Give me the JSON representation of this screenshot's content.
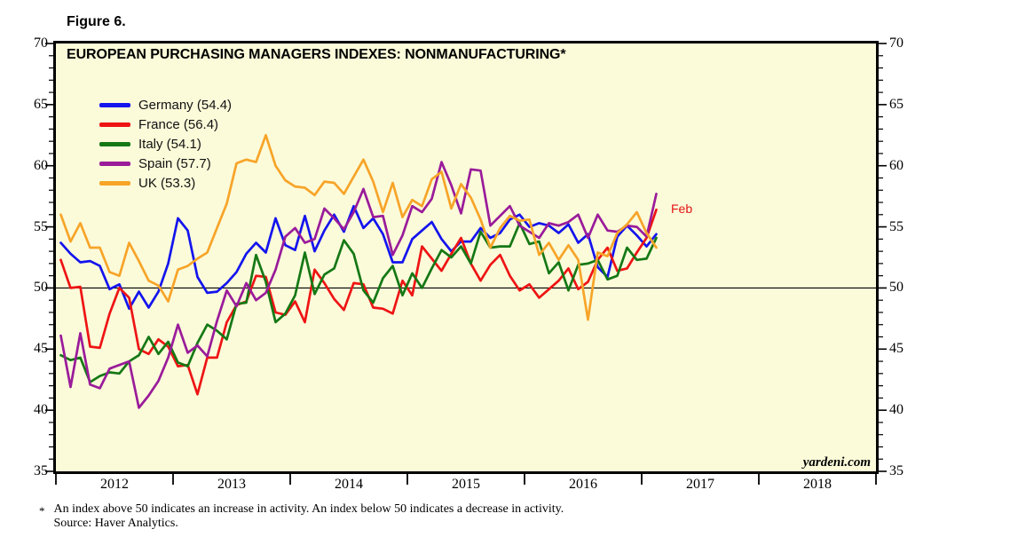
{
  "figure": {
    "label": "Figure 6."
  },
  "watermark": "yardeni.com",
  "annotations": {
    "feb_label": "Feb",
    "feb_color": "#e41414"
  },
  "footnote": {
    "marker": "*",
    "line1": "An index above 50 indicates an increase in activity. An index below 50 indicates a decrease in activity.",
    "line2": "Source: Haver Analytics."
  },
  "chart_data": {
    "type": "line",
    "title": "EUROPEAN PURCHASING MANAGERS INDEXES: NONMANUFACTURING*",
    "plot_background": "#fbfbda",
    "grid": false,
    "legend_position": "top-left",
    "reference_line": 50,
    "y_axis": {
      "min": 35,
      "max": 70,
      "major_tick": 5,
      "minor_tick": 1,
      "tick_labels": [
        "70",
        "65",
        "60",
        "55",
        "50",
        "45",
        "40",
        "35"
      ],
      "tick_values": [
        70,
        65,
        60,
        55,
        50,
        45,
        40,
        35
      ],
      "labels_on_both_sides": true
    },
    "x_axis": {
      "unit": "month",
      "data_start": "2012-01",
      "data_end": "2017-02",
      "axis_end": "2019-01",
      "months_span": 84,
      "year_labels": [
        "2012",
        "2013",
        "2014",
        "2015",
        "2016",
        "2017",
        "2018"
      ]
    },
    "series": [
      {
        "name": "Germany",
        "legend_label": "Germany (54.4)",
        "latest": 54.4,
        "color": "#1414ee",
        "values": [
          53.7,
          52.8,
          52.1,
          52.2,
          51.8,
          49.9,
          50.3,
          48.3,
          49.7,
          48.4,
          49.7,
          52.0,
          55.7,
          54.7,
          50.9,
          49.6,
          49.7,
          50.4,
          51.3,
          52.8,
          53.7,
          52.9,
          55.7,
          53.5,
          53.1,
          55.9,
          53.0,
          54.7,
          56.0,
          54.6,
          56.7,
          54.9,
          55.7,
          54.4,
          52.1,
          52.1,
          54.0,
          54.7,
          55.4,
          54.0,
          53.0,
          53.8,
          53.8,
          54.9,
          54.1,
          54.5,
          55.6,
          56.0,
          55.0,
          55.3,
          55.1,
          54.5,
          55.2,
          53.7,
          54.4,
          51.7,
          50.9,
          54.2,
          55.1,
          54.3,
          53.4,
          54.4
        ]
      },
      {
        "name": "France",
        "legend_label": "France (56.4)",
        "latest": 56.4,
        "color": "#ee1414",
        "values": [
          52.3,
          50.0,
          50.1,
          45.2,
          45.1,
          47.9,
          50.0,
          49.2,
          45.0,
          44.6,
          45.8,
          45.2,
          43.6,
          43.7,
          41.3,
          44.3,
          44.3,
          47.2,
          48.6,
          48.9,
          51.0,
          50.9,
          48.0,
          47.8,
          48.9,
          47.2,
          51.5,
          50.4,
          49.1,
          48.2,
          50.4,
          50.3,
          48.4,
          48.3,
          47.9,
          50.6,
          49.4,
          53.4,
          52.4,
          51.4,
          52.8,
          54.1,
          52.0,
          50.6,
          51.9,
          52.7,
          51.0,
          49.8,
          50.3,
          49.2,
          49.9,
          50.6,
          51.6,
          49.9,
          50.5,
          52.3,
          53.3,
          51.4,
          51.6,
          52.9,
          54.1,
          56.4
        ]
      },
      {
        "name": "Italy",
        "legend_label": "Italy (54.1)",
        "latest": 54.1,
        "color": "#157815",
        "values": [
          44.5,
          44.1,
          44.3,
          42.3,
          42.8,
          43.1,
          43.0,
          44.0,
          44.5,
          46.0,
          44.6,
          45.6,
          43.9,
          43.6,
          45.5,
          47.0,
          46.5,
          45.8,
          48.7,
          48.8,
          52.7,
          50.5,
          47.2,
          47.9,
          49.4,
          52.9,
          49.5,
          51.1,
          51.6,
          53.9,
          52.8,
          49.8,
          48.8,
          50.8,
          51.8,
          49.4,
          51.2,
          50.0,
          51.6,
          53.1,
          52.5,
          53.4,
          52.0,
          54.6,
          53.3,
          53.4,
          53.4,
          55.3,
          53.6,
          53.8,
          51.2,
          52.1,
          49.8,
          51.9,
          52.0,
          52.3,
          50.7,
          51.0,
          53.3,
          52.3,
          52.4,
          54.1
        ]
      },
      {
        "name": "Spain",
        "legend_label": "Spain (57.7)",
        "latest": 57.7,
        "color": "#9a1b9a",
        "values": [
          46.1,
          41.9,
          46.3,
          42.1,
          41.8,
          43.4,
          43.7,
          44.0,
          40.2,
          41.2,
          42.4,
          44.3,
          47.0,
          44.7,
          45.3,
          44.4,
          47.3,
          49.8,
          48.5,
          50.4,
          49.0,
          49.6,
          51.5,
          54.2,
          54.9,
          53.7,
          54.0,
          56.5,
          55.7,
          54.8,
          56.2,
          58.1,
          55.8,
          55.9,
          52.7,
          54.3,
          56.7,
          56.2,
          57.3,
          60.3,
          58.4,
          56.1,
          59.7,
          59.6,
          55.1,
          55.9,
          56.7,
          55.1,
          54.6,
          54.1,
          55.3,
          55.1,
          55.4,
          56.0,
          54.1,
          56.0,
          54.7,
          54.6,
          55.1,
          55.0,
          54.2,
          57.7
        ]
      },
      {
        "name": "UK",
        "legend_label": "UK (53.3)",
        "latest": 53.3,
        "color": "#f7a428",
        "values": [
          56.0,
          53.8,
          55.3,
          53.3,
          53.3,
          51.3,
          51.0,
          53.7,
          52.2,
          50.6,
          50.2,
          48.9,
          51.5,
          51.8,
          52.4,
          52.9,
          54.9,
          56.9,
          60.2,
          60.5,
          60.3,
          62.5,
          60.0,
          58.8,
          58.3,
          58.2,
          57.6,
          58.7,
          58.6,
          57.7,
          59.1,
          60.5,
          58.7,
          56.2,
          58.6,
          55.8,
          57.2,
          56.7,
          58.9,
          59.5,
          56.5,
          58.5,
          57.4,
          55.6,
          53.3,
          54.9,
          55.9,
          55.5,
          55.6,
          52.7,
          53.7,
          52.3,
          53.5,
          52.3,
          47.4,
          52.9,
          52.6,
          54.5,
          55.2,
          56.2,
          54.5,
          53.3
        ]
      }
    ]
  }
}
